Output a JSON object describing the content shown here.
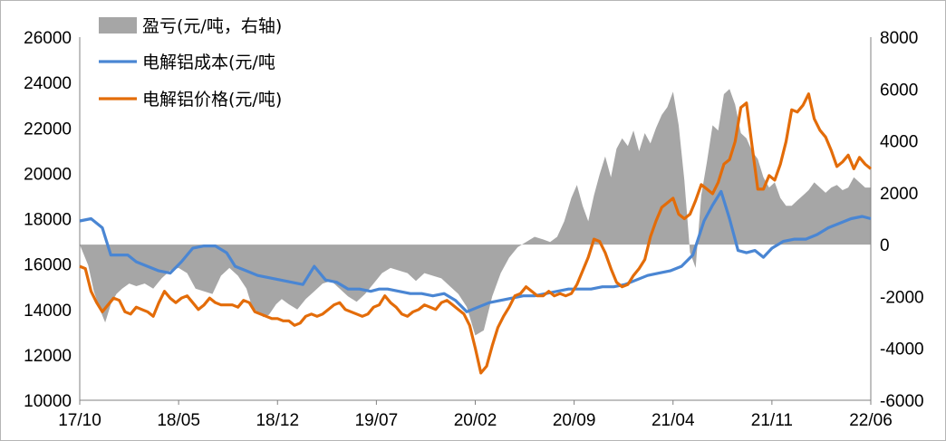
{
  "chart_data": {
    "type": "line",
    "title": "",
    "xlabel": "",
    "ylabel": "",
    "x_ticks": [
      "17/10",
      "18/05",
      "18/12",
      "19/07",
      "20/02",
      "20/09",
      "21/04",
      "21/11",
      "22/06"
    ],
    "y_left_ticks": [
      "10000",
      "12000",
      "14000",
      "16000",
      "18000",
      "20000",
      "22000",
      "24000",
      "26000"
    ],
    "y_right_ticks": [
      "-6000",
      "-4000",
      "-2000",
      "0",
      "2000",
      "4000",
      "6000",
      "8000"
    ],
    "ylim_left": [
      10000,
      26000
    ],
    "ylim_right": [
      -6000,
      8000
    ],
    "x_unit": "month index from 17/10",
    "x_range": [
      0,
      56
    ],
    "legend": {
      "position": "top-left"
    },
    "grid": false,
    "series": [
      {
        "name": "盈亏(元/吨，右轴)",
        "type": "area",
        "axis": "right",
        "color": "#a6a6a6",
        "x": [
          0,
          0.6,
          1.0,
          1.5,
          1.8,
          2.2,
          2.6,
          3.0,
          3.5,
          4.0,
          4.6,
          5.2,
          5.8,
          6.4,
          7.0,
          7.6,
          8.2,
          8.8,
          9.4,
          10.0,
          10.6,
          11.2,
          11.8,
          12.2,
          12.6,
          13.0,
          13.4,
          13.9,
          14.3,
          14.8,
          15.4,
          16.0,
          16.6,
          17.2,
          17.8,
          18.4,
          19.0,
          19.6,
          20.2,
          20.8,
          21.4,
          22.0,
          22.6,
          23.2,
          23.8,
          24.4,
          25.0,
          25.6,
          26.2,
          26.8,
          27.4,
          28.0,
          28.6,
          29.2,
          29.8,
          30.4,
          31.0,
          31.6,
          32.2,
          32.8,
          33.3,
          33.8,
          34.3,
          34.8,
          35.2,
          35.6,
          36.0,
          36.4,
          36.8,
          37.2,
          37.6,
          38.0,
          38.4,
          38.8,
          39.2,
          39.6,
          40.0,
          40.4,
          40.8,
          41.2,
          41.6,
          42.0,
          42.4,
          42.8,
          43.2,
          43.6,
          44.0,
          44.4,
          44.8,
          45.2,
          45.6,
          46.0,
          46.4,
          46.8,
          47.2,
          47.6,
          48.0,
          48.4,
          48.8,
          49.2,
          49.6,
          50.0,
          50.4,
          50.8,
          51.2,
          51.6,
          52.0,
          52.4,
          52.8,
          53.2,
          53.6,
          54.0,
          54.4,
          54.8,
          55.2,
          55.6,
          56.0
        ],
        "values": [
          0,
          -800,
          -1800,
          -2600,
          -3000,
          -2300,
          -1900,
          -1700,
          -1500,
          -1600,
          -1500,
          -1700,
          -1300,
          -1000,
          -900,
          -1100,
          -1700,
          -1800,
          -1900,
          -1200,
          -900,
          -1200,
          -1700,
          -2400,
          -2600,
          -2800,
          -2700,
          -2300,
          -2100,
          -2300,
          -2500,
          -2100,
          -1800,
          -1500,
          -1400,
          -1700,
          -2000,
          -2200,
          -1900,
          -1500,
          -1100,
          -900,
          -1000,
          -1100,
          -1400,
          -1100,
          -1200,
          -1300,
          -1600,
          -1900,
          -2400,
          -3500,
          -3300,
          -2000,
          -1100,
          -500,
          -100,
          100,
          300,
          200,
          100,
          300,
          900,
          1800,
          2300,
          1500,
          900,
          1900,
          2700,
          3400,
          2600,
          3700,
          4100,
          3800,
          4400,
          3600,
          4300,
          3900,
          4500,
          5000,
          5300,
          5900,
          4600,
          2500,
          -300,
          -900,
          1900,
          3200,
          4600,
          4400,
          5800,
          6000,
          5400,
          4300,
          4100,
          3600,
          3300,
          2600,
          2200,
          2400,
          1800,
          1500,
          1500,
          1700,
          1900,
          2100,
          2400,
          2200,
          2000,
          2200,
          2300,
          2100,
          2200,
          2600,
          2400,
          2200,
          2200
        ]
      },
      {
        "name": "电解铝成本(元/吨",
        "type": "line",
        "axis": "left",
        "color": "#4a86d3",
        "x": [
          0,
          0.8,
          1.6,
          2.2,
          2.8,
          3.4,
          4.0,
          4.8,
          5.6,
          6.4,
          7.2,
          8.0,
          8.8,
          9.6,
          10.4,
          11.0,
          11.8,
          12.6,
          13.4,
          14.2,
          15.0,
          15.8,
          16.6,
          17.4,
          18.2,
          19.0,
          19.8,
          20.6,
          21.2,
          21.8,
          22.6,
          23.4,
          24.2,
          25.0,
          25.8,
          26.6,
          27.4,
          28.2,
          29.0,
          29.8,
          30.6,
          31.4,
          32.2,
          33.0,
          33.8,
          34.6,
          35.4,
          36.2,
          37.0,
          37.8,
          38.6,
          39.4,
          40.2,
          41.0,
          41.8,
          42.6,
          43.4,
          44.2,
          44.8,
          45.4,
          46.0,
          46.6,
          47.2,
          47.8,
          48.4,
          49.0,
          49.8,
          50.6,
          51.4,
          52.2,
          53.0,
          53.8,
          54.6,
          55.4,
          56.0
        ],
        "values": [
          17900,
          18000,
          17600,
          16400,
          16400,
          16400,
          16100,
          15900,
          15700,
          15600,
          16100,
          16700,
          16800,
          16800,
          16500,
          15900,
          15700,
          15500,
          15400,
          15300,
          15200,
          15100,
          15900,
          15300,
          15200,
          14900,
          14900,
          14800,
          14900,
          14900,
          14800,
          14700,
          14700,
          14600,
          14700,
          14400,
          13900,
          14100,
          14300,
          14400,
          14500,
          14600,
          14600,
          14700,
          14800,
          14900,
          14900,
          14900,
          15000,
          15000,
          15100,
          15300,
          15500,
          15600,
          15700,
          15900,
          16400,
          17900,
          18600,
          19200,
          18000,
          16600,
          16500,
          16600,
          16300,
          16700,
          17000,
          17100,
          17100,
          17300,
          17600,
          17800,
          18000,
          18100,
          18000
        ]
      },
      {
        "name": "电解铝价格(元/吨)",
        "type": "line",
        "axis": "left",
        "color": "#e36c09",
        "x": [
          0,
          0.4,
          0.8,
          1.2,
          1.6,
          2.0,
          2.4,
          2.8,
          3.2,
          3.6,
          4.0,
          4.4,
          4.8,
          5.2,
          5.6,
          6.0,
          6.4,
          6.8,
          7.2,
          7.6,
          8.0,
          8.4,
          8.8,
          9.2,
          9.6,
          10.0,
          10.4,
          10.8,
          11.2,
          11.6,
          12.0,
          12.4,
          12.8,
          13.2,
          13.6,
          14.0,
          14.4,
          14.8,
          15.2,
          15.6,
          16.0,
          16.4,
          16.8,
          17.2,
          17.6,
          18.0,
          18.4,
          18.8,
          19.2,
          19.6,
          20.0,
          20.4,
          20.8,
          21.2,
          21.6,
          22.0,
          22.4,
          22.8,
          23.2,
          23.6,
          24.0,
          24.4,
          24.8,
          25.2,
          25.6,
          26.0,
          26.4,
          26.8,
          27.2,
          27.6,
          28.0,
          28.4,
          28.8,
          29.2,
          29.6,
          30.0,
          30.4,
          30.8,
          31.2,
          31.6,
          32.0,
          32.4,
          32.8,
          33.2,
          33.6,
          34.0,
          34.4,
          34.8,
          35.2,
          35.6,
          36.0,
          36.4,
          36.8,
          37.2,
          37.6,
          38.0,
          38.4,
          38.8,
          39.2,
          39.6,
          40.0,
          40.4,
          40.8,
          41.2,
          41.6,
          42.0,
          42.4,
          42.8,
          43.2,
          43.6,
          44.0,
          44.4,
          44.8,
          45.2,
          45.6,
          46.0,
          46.4,
          46.8,
          47.2,
          47.6,
          48.0,
          48.4,
          48.8,
          49.2,
          49.6,
          50.0,
          50.4,
          50.8,
          51.2,
          51.6,
          52.0,
          52.4,
          52.8,
          53.2,
          53.6,
          54.0,
          54.4,
          54.8,
          55.2,
          55.6,
          56.0
        ],
        "values": [
          15900,
          15800,
          14800,
          14300,
          13900,
          14200,
          14500,
          14400,
          13900,
          13800,
          14100,
          14000,
          13900,
          13700,
          14300,
          14800,
          14500,
          14300,
          14500,
          14600,
          14300,
          14000,
          14200,
          14500,
          14300,
          14200,
          14200,
          14200,
          14100,
          14400,
          14300,
          13900,
          13800,
          13700,
          13600,
          13600,
          13500,
          13500,
          13300,
          13400,
          13700,
          13800,
          13700,
          13800,
          14000,
          14200,
          14300,
          14000,
          13900,
          13800,
          13700,
          13800,
          14100,
          14200,
          14600,
          14300,
          14100,
          13800,
          13700,
          13900,
          14000,
          14200,
          14100,
          14000,
          14300,
          14400,
          14200,
          14000,
          13800,
          13300,
          12300,
          11200,
          11500,
          12400,
          13200,
          13700,
          14100,
          14600,
          14700,
          15000,
          14800,
          14600,
          14600,
          14800,
          14600,
          14700,
          14600,
          14700,
          15100,
          15700,
          16300,
          17100,
          17000,
          16500,
          15800,
          15200,
          15000,
          15100,
          15500,
          15800,
          16200,
          17200,
          17900,
          18500,
          18700,
          18900,
          18200,
          18000,
          18200,
          18800,
          19500,
          19300,
          19100,
          19600,
          20400,
          20600,
          21400,
          22900,
          23100,
          21200,
          19300,
          19300,
          19900,
          19700,
          20400,
          21400,
          22800,
          22700,
          23000,
          23500,
          22400,
          21900,
          21600,
          21000,
          20300,
          20500,
          20800,
          20200,
          20700,
          20400,
          20200
        ]
      }
    ]
  }
}
